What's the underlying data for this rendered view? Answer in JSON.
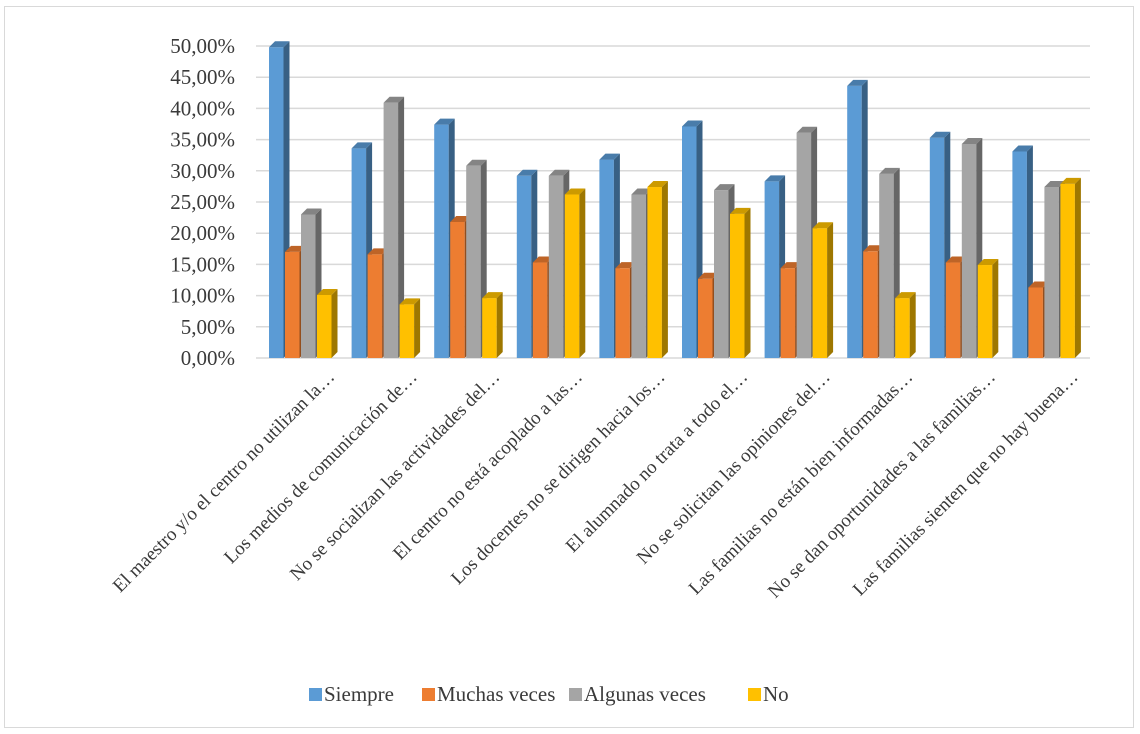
{
  "chart_data": {
    "type": "bar",
    "style": "3d-clustered-column",
    "categories": [
      "El maestro y/o el centro no utilizan la…",
      "Los medios de comunicación de…",
      "No se socializan las actividades del…",
      "El centro no está acoplado a las…",
      "Los docentes no se dirigen hacia los…",
      "El alumnado no trata a todo el…",
      "No se solicitan las opiniones del…",
      "Las familias no están bien informadas…",
      "No se dan oportunidades a las familias…",
      "Las familias sienten que no hay buena…"
    ],
    "series": [
      {
        "name": "Siempre",
        "color": "#5b9bd5",
        "values": [
          49.8,
          33.6,
          37.4,
          29.2,
          31.8,
          37.1,
          28.3,
          43.6,
          35.3,
          33.1
        ]
      },
      {
        "name": "Muchas veces",
        "color": "#ed7d31",
        "values": [
          17.0,
          16.6,
          21.8,
          15.3,
          14.4,
          12.7,
          14.4,
          17.1,
          15.3,
          11.3
        ]
      },
      {
        "name": "Algunas veces",
        "color": "#a5a5a5",
        "values": [
          23.0,
          40.9,
          30.8,
          29.2,
          26.2,
          26.9,
          36.1,
          29.5,
          34.3,
          27.4
        ]
      },
      {
        "name": "No",
        "color": "#ffc000",
        "values": [
          10.1,
          8.6,
          9.6,
          26.2,
          27.4,
          23.1,
          20.8,
          9.6,
          14.9,
          27.9
        ]
      }
    ],
    "ylim": [
      0,
      50
    ],
    "ytick_labels": [
      "0,00%",
      "5,00%",
      "10,00%",
      "15,00%",
      "20,00%",
      "25,00%",
      "30,00%",
      "35,00%",
      "40,00%",
      "45,00%",
      "50,00%"
    ],
    "grid": true,
    "legend_position": "bottom"
  }
}
